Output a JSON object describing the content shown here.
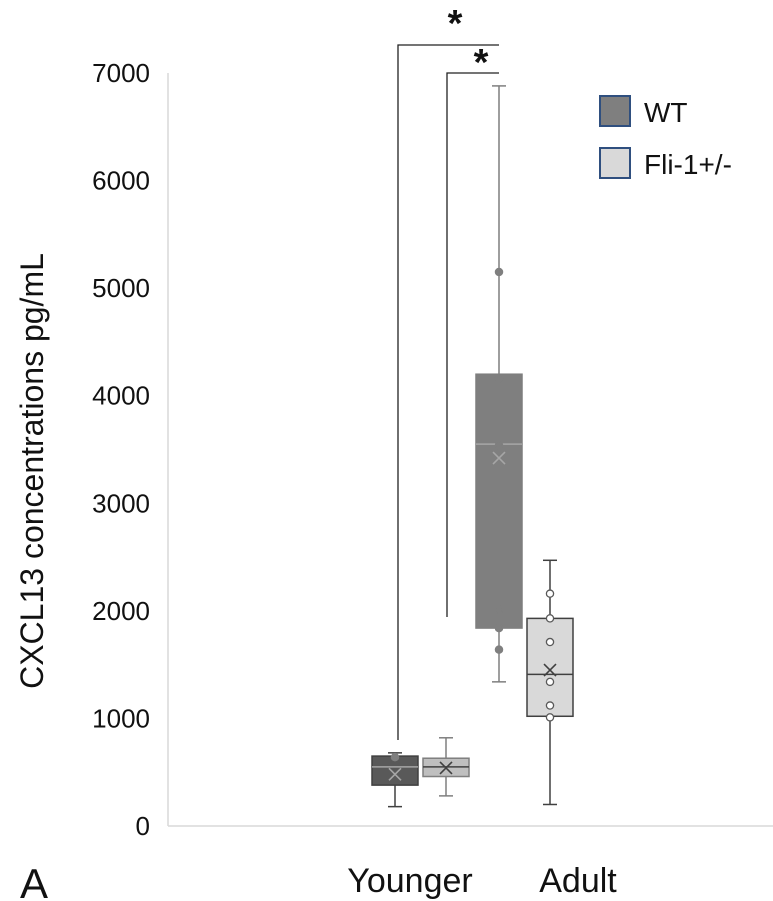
{
  "panel_label": "A",
  "chart_data": {
    "type": "box",
    "ylabel": "CXCL13 concentrations pg/mL",
    "xlabel": "",
    "ylim": [
      0,
      7000
    ],
    "yticks": [
      0,
      1000,
      2000,
      3000,
      4000,
      5000,
      6000,
      7000
    ],
    "categories": [
      "Younger",
      "Adult"
    ],
    "grid": false,
    "legend_position": "top-right",
    "series": [
      {
        "name": "WT",
        "color": "#7f7f7f",
        "border": "#5a5a5a",
        "boxes": [
          {
            "category": "Younger",
            "color": "#595959",
            "min": 180,
            "q1": 380,
            "median": 550,
            "q3": 650,
            "max": 680,
            "mean": 480,
            "points": [
              640
            ]
          },
          {
            "category": "Adult",
            "color": "#7f7f7f",
            "min": 1340,
            "q1": 1840,
            "median": 3550,
            "q3": 4200,
            "max": 6880,
            "mean": 3420,
            "points": [
              1640,
              1840,
              2010,
              3540,
              4160,
              5150
            ]
          }
        ]
      },
      {
        "name": "Fli-1+/-",
        "color": "#d9d9d9",
        "border": "#7f7f7f",
        "boxes": [
          {
            "category": "Younger",
            "color": "#bfbfbf",
            "min": 280,
            "q1": 460,
            "median": 550,
            "q3": 630,
            "max": 820,
            "mean": 540,
            "points": []
          },
          {
            "category": "Adult",
            "color": "#d9d9d9",
            "min": 200,
            "q1": 1020,
            "median": 1410,
            "q3": 1930,
            "max": 2470,
            "mean": 1450,
            "points": [
              1010,
              1120,
              1340,
              1710,
              1930,
              2160
            ]
          }
        ]
      }
    ],
    "significance": [
      {
        "label": "*",
        "from": "Younger WT",
        "to": "Adult WT"
      },
      {
        "label": "*",
        "from": "Younger Fli-1+/-",
        "to": "Adult WT"
      }
    ]
  }
}
